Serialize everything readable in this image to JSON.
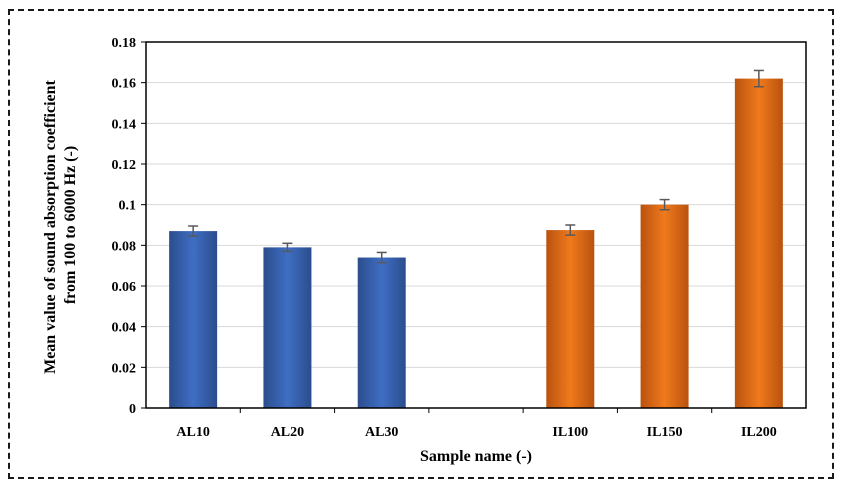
{
  "chart_data": {
    "type": "bar",
    "title": "",
    "xlabel": "Sample name (-)",
    "ylabel_lines": [
      "Mean value of sound absorption coefficient",
      "from 100 to 6000 Hz (-)"
    ],
    "categories": [
      "AL10",
      "AL20",
      "AL30",
      "",
      "IL100",
      "IL150",
      "IL200"
    ],
    "values": [
      0.087,
      0.079,
      0.074,
      null,
      0.0875,
      0.1,
      0.162
    ],
    "errors": [
      0.0025,
      0.002,
      0.0025,
      null,
      0.0025,
      0.0025,
      0.004
    ],
    "colors": [
      "blue",
      "blue",
      "blue",
      null,
      "orange",
      "orange",
      "orange"
    ],
    "ylim": [
      0,
      0.18
    ],
    "yticks": [
      "0",
      "0.02",
      "0.04",
      "0.06",
      "0.08",
      "0.1",
      "0.12",
      "0.14",
      "0.16",
      "0.18"
    ],
    "grid": true,
    "legend": "none",
    "palette": {
      "blue_edge": "#2b4d8c",
      "blue_mid": "#3f6ec4",
      "orange_edge": "#b9520f",
      "orange_mid": "#f07a1c",
      "grid": "#d9d9d9",
      "error_bar": "#595959"
    }
  }
}
